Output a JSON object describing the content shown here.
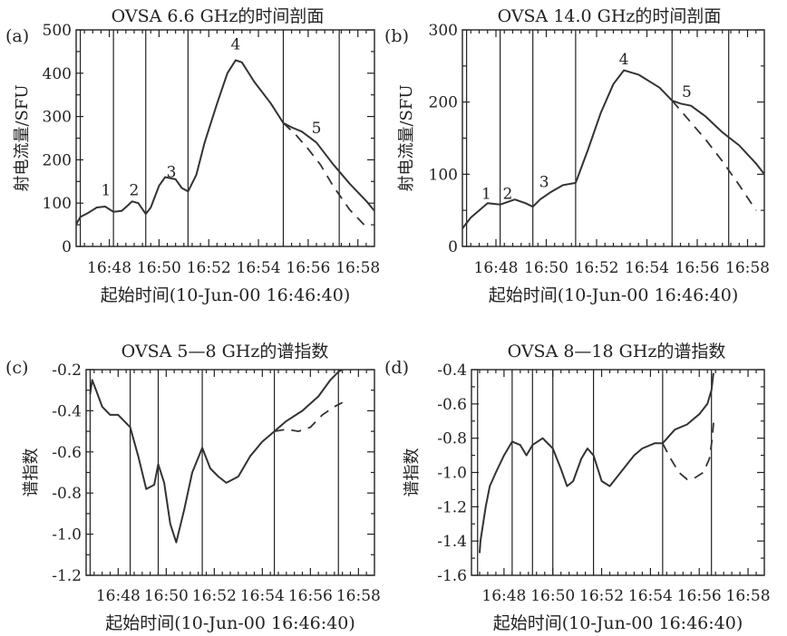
{
  "figure": {
    "common_x_label": "起始时间(10-Jun-00 16:46:40)",
    "x_ticks": [
      "16:48",
      "16:50",
      "16:52",
      "16:54",
      "16:56",
      "16:58"
    ],
    "x_tick_values_min": [
      80,
      200,
      320,
      440,
      560,
      680
    ],
    "x_range_min": [
      0,
      720
    ]
  },
  "chart_data": [
    {
      "type": "line",
      "panel_label": "(a)",
      "title": "OVSA 6.6 GHz的时间剖面",
      "ylabel": "射电流量/SFU",
      "ylim": [
        0,
        500
      ],
      "y_ticks": [
        "0",
        "100",
        "200",
        "300",
        "400",
        "500"
      ],
      "y_tick_values": [
        0,
        100,
        200,
        300,
        400,
        500
      ],
      "vlines": [
        10,
        90,
        168,
        270,
        500,
        635
      ],
      "annotations": [
        {
          "text": "1",
          "x": 72,
          "y": 118
        },
        {
          "text": "2",
          "x": 140,
          "y": 118
        },
        {
          "text": "3",
          "x": 230,
          "y": 160
        },
        {
          "text": "4",
          "x": 385,
          "y": 455
        },
        {
          "text": "5",
          "x": 580,
          "y": 262
        }
      ],
      "series": [
        {
          "style": "solid",
          "x": [
            -30,
            10,
            30,
            50,
            70,
            90,
            110,
            125,
            135,
            150,
            168,
            180,
            200,
            215,
            240,
            255,
            270,
            290,
            310,
            340,
            365,
            385,
            400,
            430,
            470,
            500,
            520,
            545,
            580,
            620,
            660,
            700,
            720
          ],
          "y": [
            0,
            68,
            78,
            90,
            92,
            80,
            82,
            95,
            104,
            100,
            75,
            90,
            140,
            160,
            155,
            135,
            127,
            165,
            240,
            330,
            400,
            430,
            425,
            380,
            330,
            285,
            275,
            265,
            240,
            190,
            145,
            105,
            82
          ]
        },
        {
          "style": "dashed",
          "x": [
            500,
            530,
            560,
            590,
            620,
            660,
            700
          ],
          "y": [
            285,
            258,
            225,
            188,
            140,
            85,
            45
          ]
        }
      ]
    },
    {
      "type": "line",
      "panel_label": "(b)",
      "title": "OVSA 14.0 GHz的时间剖面",
      "ylabel": "射电流量/SFU",
      "ylim": [
        0,
        300
      ],
      "y_ticks": [
        "0",
        "100",
        "200",
        "300"
      ],
      "y_tick_values": [
        0,
        100,
        200,
        300
      ],
      "vlines": [
        10,
        90,
        168,
        270,
        500,
        635
      ],
      "annotations": [
        {
          "text": "1",
          "x": 57,
          "y": 66
        },
        {
          "text": "2",
          "x": 108,
          "y": 66
        },
        {
          "text": "3",
          "x": 195,
          "y": 82
        },
        {
          "text": "4",
          "x": 385,
          "y": 252
        },
        {
          "text": "5",
          "x": 535,
          "y": 207
        }
      ],
      "series": [
        {
          "style": "solid",
          "x": [
            -20,
            0,
            20,
            40,
            60,
            90,
            110,
            125,
            150,
            168,
            185,
            210,
            240,
            270,
            300,
            330,
            360,
            385,
            420,
            470,
            500,
            520,
            545,
            580,
            620,
            660,
            700,
            720
          ],
          "y": [
            0,
            25,
            40,
            50,
            60,
            58,
            62,
            65,
            60,
            55,
            65,
            75,
            85,
            88,
            135,
            185,
            225,
            244,
            238,
            220,
            202,
            198,
            195,
            180,
            158,
            140,
            115,
            100
          ]
        },
        {
          "style": "dashed",
          "x": [
            500,
            540,
            580,
            620,
            660,
            700
          ],
          "y": [
            202,
            175,
            148,
            118,
            85,
            50
          ]
        }
      ]
    },
    {
      "type": "line",
      "panel_label": "(c)",
      "title": "OVSA 5—8 GHz的谱指数",
      "ylabel": "谱指数",
      "ylim": [
        -1.2,
        -0.2
      ],
      "y_ticks": [
        "-0.2",
        "-0.4",
        "-0.6",
        "-0.8",
        "-1.0",
        "-1.2"
      ],
      "y_tick_values": [
        -0.2,
        -0.4,
        -0.6,
        -0.8,
        -1.0,
        -1.2
      ],
      "vlines": [
        10,
        110,
        180,
        290,
        470,
        630
      ],
      "series": [
        {
          "style": "solid",
          "x": [
            10,
            15,
            25,
            40,
            60,
            80,
            110,
            130,
            150,
            170,
            180,
            195,
            210,
            225,
            245,
            265,
            290,
            310,
            330,
            350,
            380,
            410,
            440,
            470,
            500,
            540,
            580,
            610,
            630,
            640
          ],
          "y": [
            -0.32,
            -0.25,
            -0.3,
            -0.38,
            -0.42,
            -0.42,
            -0.48,
            -0.62,
            -0.78,
            -0.76,
            -0.66,
            -0.75,
            -0.95,
            -1.04,
            -0.88,
            -0.7,
            -0.58,
            -0.68,
            -0.72,
            -0.75,
            -0.72,
            -0.62,
            -0.55,
            -0.5,
            -0.45,
            -0.4,
            -0.33,
            -0.25,
            -0.21,
            -0.2
          ]
        },
        {
          "style": "dashed",
          "x": [
            470,
            500,
            530,
            560,
            590,
            620,
            640
          ],
          "y": [
            -0.5,
            -0.49,
            -0.5,
            -0.48,
            -0.42,
            -0.38,
            -0.36
          ]
        }
      ]
    },
    {
      "type": "line",
      "panel_label": "(d)",
      "title": "OVSA 8—18 GHz的谱指数",
      "ylabel": "谱指数",
      "ylim": [
        -1.6,
        -0.4
      ],
      "y_ticks": [
        "-0.4",
        "-0.6",
        "-0.8",
        "-1.0",
        "-1.2",
        "-1.4",
        "-1.6"
      ],
      "y_tick_values": [
        -0.4,
        -0.6,
        -0.8,
        -1.0,
        -1.2,
        -1.4,
        -1.6
      ],
      "vlines": [
        15,
        100,
        150,
        200,
        300,
        470,
        590
      ],
      "series": [
        {
          "style": "solid",
          "x": [
            20,
            22,
            35,
            45,
            60,
            80,
            100,
            120,
            135,
            150,
            175,
            200,
            220,
            235,
            250,
            270,
            285,
            300,
            320,
            340,
            360,
            380,
            400,
            420,
            450,
            470,
            500,
            530,
            560,
            580,
            590,
            595
          ],
          "y": [
            -1.47,
            -1.4,
            -1.2,
            -1.08,
            -1.0,
            -0.9,
            -0.82,
            -0.84,
            -0.9,
            -0.84,
            -0.8,
            -0.86,
            -0.98,
            -1.08,
            -1.05,
            -0.92,
            -0.86,
            -0.9,
            -1.05,
            -1.08,
            -1.02,
            -0.96,
            -0.9,
            -0.86,
            -0.83,
            -0.83,
            -0.75,
            -0.72,
            -0.66,
            -0.6,
            -0.52,
            -0.42
          ]
        },
        {
          "style": "dashed",
          "x": [
            470,
            490,
            510,
            530,
            550,
            570,
            585,
            592,
            596
          ],
          "y": [
            -0.83,
            -0.92,
            -1.0,
            -1.04,
            -1.03,
            -1.0,
            -0.92,
            -0.8,
            -0.68
          ]
        }
      ]
    }
  ]
}
